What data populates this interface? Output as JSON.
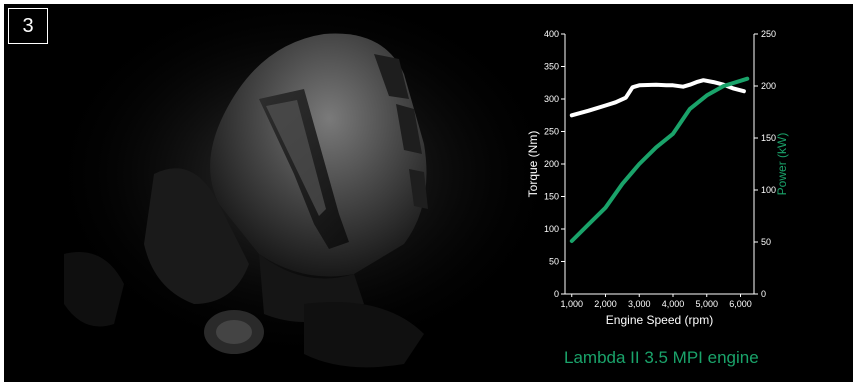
{
  "figure": {
    "number_badge": "3",
    "caption": "Lambda II 3.5 MPI engine"
  },
  "colors": {
    "background": "#000000",
    "torque_line": "#ffffff",
    "power_line": "#1aa36a"
  },
  "chart_data": {
    "type": "line",
    "title": "",
    "xlabel": "Engine Speed (rpm)",
    "ylabel": "Torque (Nm)",
    "y2label": "Power (kW)",
    "xlim": [
      800,
      6400
    ],
    "ylim": [
      0,
      400
    ],
    "y2lim": [
      0,
      250
    ],
    "x_ticks": [
      1000,
      2000,
      3000,
      4000,
      5000,
      6000
    ],
    "x_tick_labels": [
      "1,000",
      "2,000",
      "3,000",
      "4,000",
      "5,000",
      "6,000"
    ],
    "y_ticks": [
      0,
      50,
      100,
      150,
      200,
      250,
      300,
      350,
      400
    ],
    "y_tick_labels": [
      "0",
      "50",
      "100",
      "150",
      "200",
      "250",
      "300",
      "350",
      "400"
    ],
    "y2_ticks": [
      0,
      50,
      100,
      150,
      200,
      250
    ],
    "y2_tick_labels": [
      "0",
      "50",
      "100",
      "150",
      "200",
      "250"
    ],
    "grid": false,
    "legend": "none",
    "series": [
      {
        "axis": "left",
        "color": "#ffffff",
        "x": [
          1000,
          1500,
          2000,
          2300,
          2600,
          2800,
          3000,
          3500,
          3800,
          4000,
          4300,
          4500,
          4700,
          4900,
          5200,
          5500,
          5800,
          6100
        ],
        "values": [
          275,
          282,
          290,
          295,
          302,
          318,
          321,
          322,
          321,
          321,
          319,
          322,
          326,
          329,
          326,
          322,
          316,
          312
        ]
      },
      {
        "axis": "right",
        "color": "#1aa36a",
        "x": [
          1000,
          1500,
          2000,
          2500,
          3000,
          3500,
          4000,
          4500,
          5000,
          5500,
          6000,
          6200
        ],
        "values": [
          51,
          67,
          83,
          106,
          125,
          141,
          154,
          178,
          191,
          200,
          205,
          207
        ]
      }
    ]
  }
}
